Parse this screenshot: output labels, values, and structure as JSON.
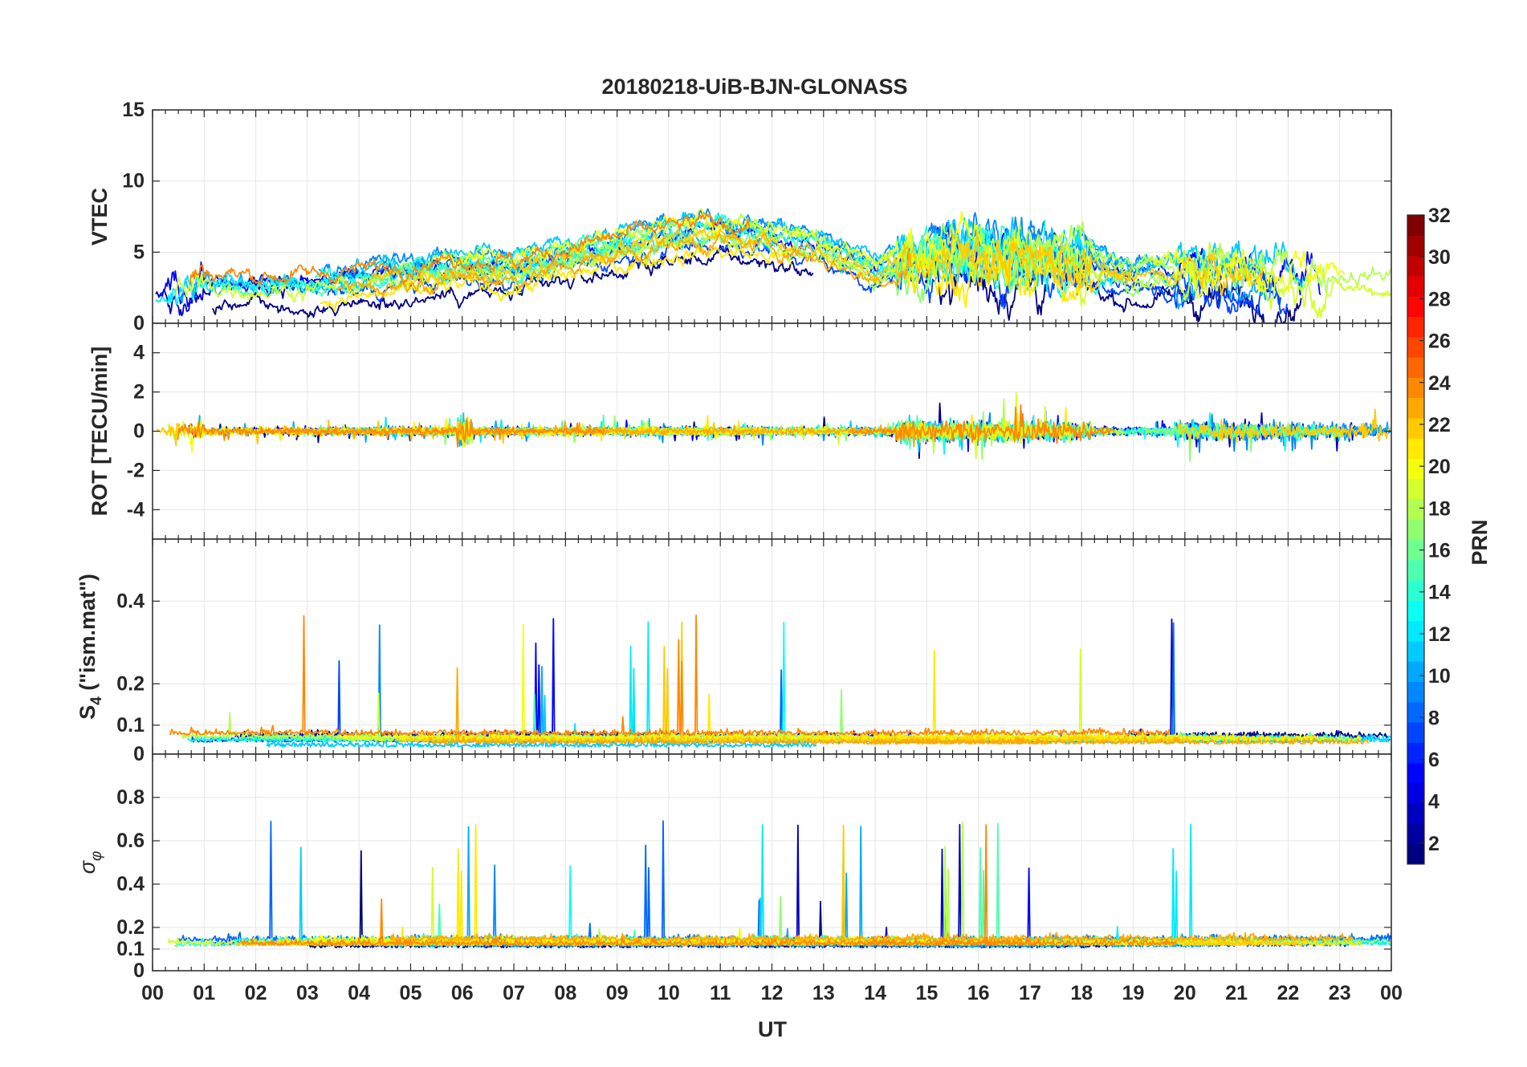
{
  "chart_data": {
    "type": "line",
    "title": "20180218-UiB-BJN-GLONASS",
    "xlabel": "UT",
    "x_range": [
      0,
      24
    ],
    "x_tick_labels": [
      "00",
      "01",
      "02",
      "03",
      "04",
      "05",
      "06",
      "07",
      "08",
      "09",
      "10",
      "11",
      "12",
      "13",
      "14",
      "15",
      "16",
      "17",
      "18",
      "19",
      "20",
      "21",
      "22",
      "23",
      "00"
    ],
    "grid": true,
    "panels": [
      {
        "name": "vtec",
        "ylabel": "VTEC",
        "ylim": [
          0,
          15
        ],
        "y_ticks": [
          0,
          5,
          10,
          15
        ],
        "y_tick_labels": [
          "0",
          "5",
          "10",
          "15"
        ],
        "profile": [
          [
            0,
            1.5
          ],
          [
            1,
            2.8
          ],
          [
            2,
            2.6
          ],
          [
            3,
            2.6
          ],
          [
            4,
            3.0
          ],
          [
            5,
            3.4
          ],
          [
            6,
            3.8
          ],
          [
            7,
            3.6
          ],
          [
            8,
            4.5
          ],
          [
            9,
            5.3
          ],
          [
            10,
            6.0
          ],
          [
            11,
            6.3
          ],
          [
            12,
            5.9
          ],
          [
            13,
            5.0
          ],
          [
            14,
            3.5
          ],
          [
            15,
            4.8
          ],
          [
            16,
            4.6
          ],
          [
            17,
            4.5
          ],
          [
            18,
            4.1
          ],
          [
            19,
            3.1
          ],
          [
            20,
            3.6
          ],
          [
            21,
            3.2
          ],
          [
            22,
            3.0
          ],
          [
            23,
            2.7
          ],
          [
            24,
            2.6
          ]
        ],
        "spread": 1.3,
        "noise": 0.35,
        "storm_windows": [
          [
            14.4,
            18.2,
            1.8
          ],
          [
            19.8,
            22.8,
            1.2
          ],
          [
            0.3,
            1.0,
            1.2
          ]
        ],
        "clip": [
          0,
          15
        ]
      },
      {
        "name": "rot",
        "ylabel": "ROT [TECU/min]",
        "ylim": [
          -5.5,
          5.5
        ],
        "y_ticks": [
          -4,
          -2,
          0,
          2,
          4
        ],
        "y_tick_labels": [
          "-4",
          "-2",
          "0",
          "2",
          "4"
        ],
        "profile": [
          [
            0,
            0
          ],
          [
            24,
            0
          ]
        ],
        "spread": 0.0,
        "noise": 0.18,
        "storm_windows": [
          [
            0.3,
            1.0,
            1.4
          ],
          [
            5.9,
            6.2,
            2.2
          ],
          [
            14.4,
            18.2,
            1.5
          ],
          [
            19.8,
            23.8,
            1.2
          ]
        ],
        "clip": [
          -5.5,
          5.5
        ]
      },
      {
        "name": "s4",
        "ylabel": "S4 (\"ism.mat\")",
        "ylabel_main": "S",
        "ylabel_sub": "4",
        "ylabel_rest": " (\"ism.mat\")",
        "ylim": [
          0.03,
          0.55
        ],
        "y_ticks": [
          0,
          0.1,
          0.2,
          0.4
        ],
        "y_tick_labels": [
          "0",
          "0.1",
          "0.2",
          "0.4"
        ],
        "profile": [
          [
            0,
            0.06
          ],
          [
            24,
            0.06
          ]
        ],
        "spread": 0.012,
        "noise": 0.012,
        "storm_windows": [
          [
            0.3,
            0.8,
            0.06
          ],
          [
            1.6,
            2.2,
            0.06
          ],
          [
            14.5,
            16.0,
            0.04
          ],
          [
            20.8,
            21.6,
            0.04
          ]
        ],
        "spikes": 0.8,
        "clip": [
          0.03,
          0.55
        ]
      },
      {
        "name": "sigma-phi",
        "ylabel": "σφ",
        "ylabel_main": "σ",
        "ylabel_sub": "φ",
        "ylim": [
          0,
          1
        ],
        "y_ticks": [
          0,
          0.1,
          0.2,
          0.4,
          0.6,
          0.8
        ],
        "y_tick_labels": [
          "0",
          "0.1",
          "0.2",
          "0.4",
          "0.6",
          "0.8"
        ],
        "profile": [
          [
            0,
            0.12
          ],
          [
            24,
            0.12
          ]
        ],
        "spread": 0.02,
        "noise": 0.025,
        "storm_windows": [
          [
            3.4,
            6.0,
            0.04
          ],
          [
            15.3,
            15.8,
            0.12
          ],
          [
            20.5,
            21.5,
            0.05
          ]
        ],
        "spikes": 0.6,
        "clip": [
          0,
          1
        ]
      }
    ],
    "colorbar": {
      "label": "PRN",
      "range": [
        1,
        32
      ],
      "tick_values": [
        2,
        4,
        6,
        8,
        10,
        12,
        14,
        16,
        18,
        20,
        22,
        24,
        26,
        28,
        30,
        32
      ],
      "tick_labels": [
        "2",
        "4",
        "6",
        "8",
        "10",
        "12",
        "14",
        "16",
        "18",
        "20",
        "22",
        "24",
        "26",
        "28",
        "30",
        "32"
      ],
      "colormap": "jet"
    },
    "series_prns": [
      1,
      3,
      5,
      7,
      8,
      9,
      10,
      11,
      12,
      13,
      14,
      15,
      17,
      18,
      19,
      20,
      21,
      22,
      23,
      24
    ]
  }
}
